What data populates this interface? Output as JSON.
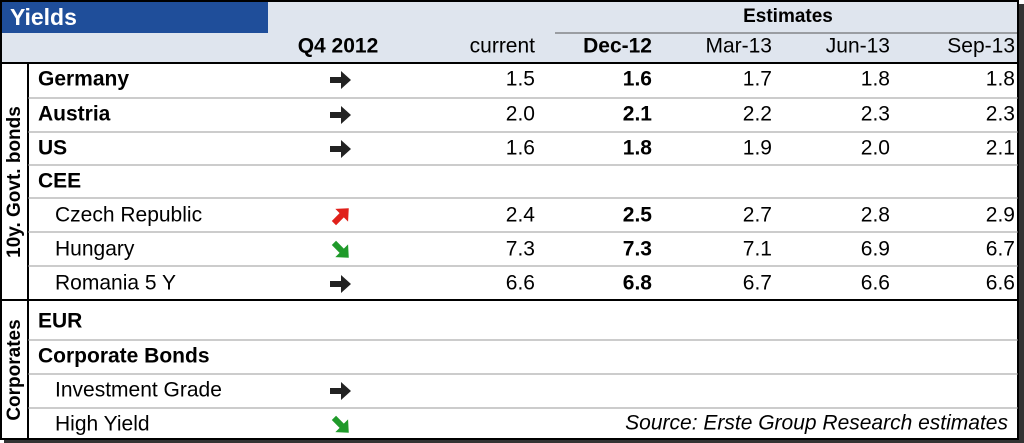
{
  "header": {
    "title": "Yields",
    "period": "Q4 2012",
    "current": "current",
    "estimates": "Estimates",
    "columns": [
      "Dec-12",
      "Mar-13",
      "Jun-13",
      "Sep-13"
    ]
  },
  "sections": [
    {
      "label": "10y. Govt. bonds",
      "rows": [
        {
          "label": "Germany",
          "values": [
            "1.5",
            "1.6",
            "1.7",
            "1.8",
            "1.8"
          ]
        },
        {
          "label": "Austria",
          "values": [
            "2.0",
            "2.1",
            "2.2",
            "2.3",
            "2.3"
          ]
        },
        {
          "label": "US",
          "values": [
            "1.6",
            "1.8",
            "1.9",
            "2.0",
            "2.1"
          ]
        },
        {
          "label": "CEE"
        },
        {
          "label": "Czech Republic",
          "values": [
            "2.4",
            "2.5",
            "2.7",
            "2.8",
            "2.9"
          ]
        },
        {
          "label": "Hungary",
          "values": [
            "7.3",
            "7.3",
            "7.1",
            "6.9",
            "6.7"
          ]
        },
        {
          "label": "Romania 5 Y",
          "values": [
            "6.6",
            "6.8",
            "6.7",
            "6.6",
            "6.6"
          ]
        }
      ]
    },
    {
      "label": "Corporates",
      "rows": [
        {
          "label": "EUR"
        },
        {
          "label": "Corporate Bonds"
        },
        {
          "label": "Investment Grade"
        },
        {
          "label": "High Yield"
        }
      ]
    }
  ],
  "source": "Source: Erste Group Research estimates"
}
